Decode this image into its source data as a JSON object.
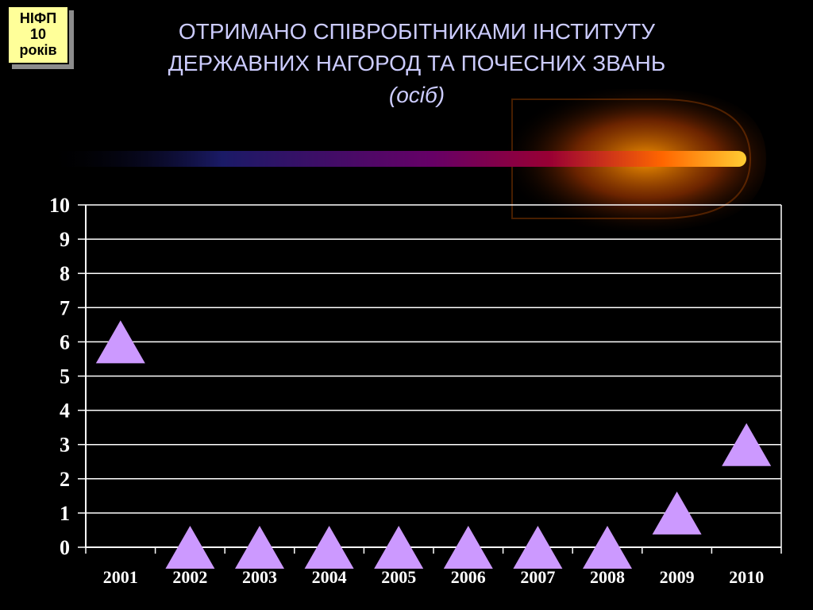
{
  "badge": {
    "line1": "НІФП",
    "line2": "10",
    "line3": "років"
  },
  "title": {
    "line1": "ОТРИМАНО СПІВРОБІТНИКАМИ ІНСТИТУТУ",
    "line2": "ДЕРЖАВНИХ НАГОРОД ТА ПОЧЕСНИХ ЗВАНЬ",
    "unit": "(осіб)"
  },
  "colors": {
    "background": "#000000",
    "title": "#ccccff",
    "marker": "#cc99ff",
    "grid": "#ffffff"
  },
  "chart_data": {
    "type": "scatter",
    "marker": "triangle",
    "categories": [
      "2001",
      "2002",
      "2003",
      "2004",
      "2005",
      "2006",
      "2007",
      "2008",
      "2009",
      "2010"
    ],
    "values": [
      6,
      0,
      0,
      0,
      0,
      0,
      0,
      0,
      1,
      3
    ],
    "yticks": [
      "0",
      "1",
      "2",
      "3",
      "4",
      "5",
      "6",
      "7",
      "8",
      "9",
      "10"
    ],
    "ylim": [
      0,
      10
    ],
    "grid": true,
    "legend": "none"
  }
}
